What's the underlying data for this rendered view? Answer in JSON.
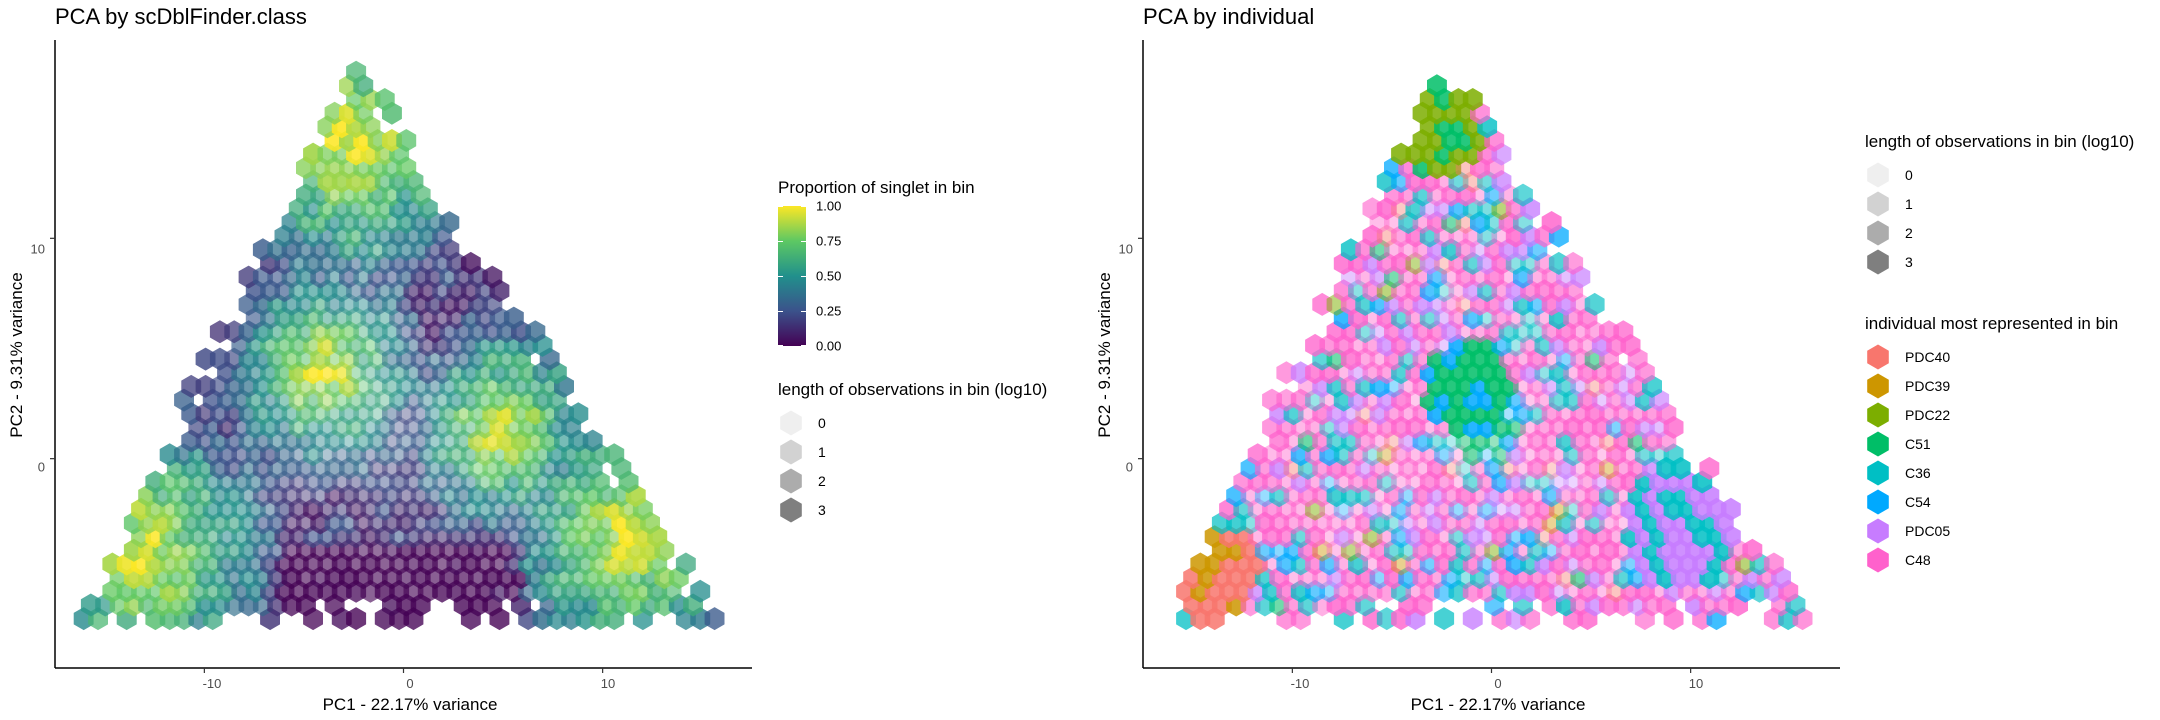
{
  "chart_data": [
    {
      "type": "hexbin",
      "title": "PCA by scDblFinder.class",
      "xlabel": "PC1 - 22.17% variance",
      "ylabel": "PC2 - 9.31% variance",
      "xlim": [
        -17.5,
        17.5
      ],
      "ylim": [
        -9.5,
        19
      ],
      "x_ticks": [
        -10,
        0,
        10
      ],
      "x_tick_labels": [
        "-10",
        "0",
        "10"
      ],
      "y_ticks": [
        0,
        10
      ],
      "y_tick_labels": [
        "0",
        "10"
      ],
      "grid": false,
      "fill_legend": {
        "title": "Proportion of singlet in bin",
        "scale": "viridis",
        "range": [
          0,
          1
        ],
        "ticks": [
          1.0,
          0.75,
          0.5,
          0.25,
          0.0
        ],
        "tick_labels": [
          "1.00",
          "0.75",
          "0.50",
          "0.25",
          "0.00"
        ]
      },
      "size_legend": {
        "title": "length of observations in bin (log10)",
        "values": [
          0,
          1,
          2,
          3
        ],
        "labels": [
          "0",
          "1",
          "2",
          "3"
        ]
      }
    },
    {
      "type": "hexbin",
      "title": "PCA by individual",
      "xlabel": "PC1 - 22.17% variance",
      "ylabel": "PC2 - 9.31% variance",
      "xlim": [
        -17.5,
        17.5
      ],
      "ylim": [
        -9.5,
        19
      ],
      "x_ticks": [
        -10,
        0,
        10
      ],
      "x_tick_labels": [
        "-10",
        "0",
        "10"
      ],
      "y_ticks": [
        0,
        10
      ],
      "y_tick_labels": [
        "0",
        "10"
      ],
      "grid": false,
      "size_legend": {
        "title": "length of observations in bin (log10)",
        "values": [
          0,
          1,
          2,
          3
        ],
        "labels": [
          "0",
          "1",
          "2",
          "3"
        ]
      },
      "fill_legend": {
        "title": "individual most represented in bin",
        "categories": [
          "PDC40",
          "PDC39",
          "PDC22",
          "C51",
          "C36",
          "C54",
          "PDC05",
          "C48"
        ],
        "colors": [
          "#F8766D",
          "#CD9600",
          "#7CAE00",
          "#00BE67",
          "#00BFC4",
          "#00A9FF",
          "#C77CFF",
          "#FF61CC"
        ]
      }
    }
  ],
  "colors": {
    "viridis": [
      "#440154",
      "#3B528B",
      "#21908C",
      "#5DC863",
      "#FDE725"
    ],
    "neutral_key": "#7f7f7f"
  }
}
